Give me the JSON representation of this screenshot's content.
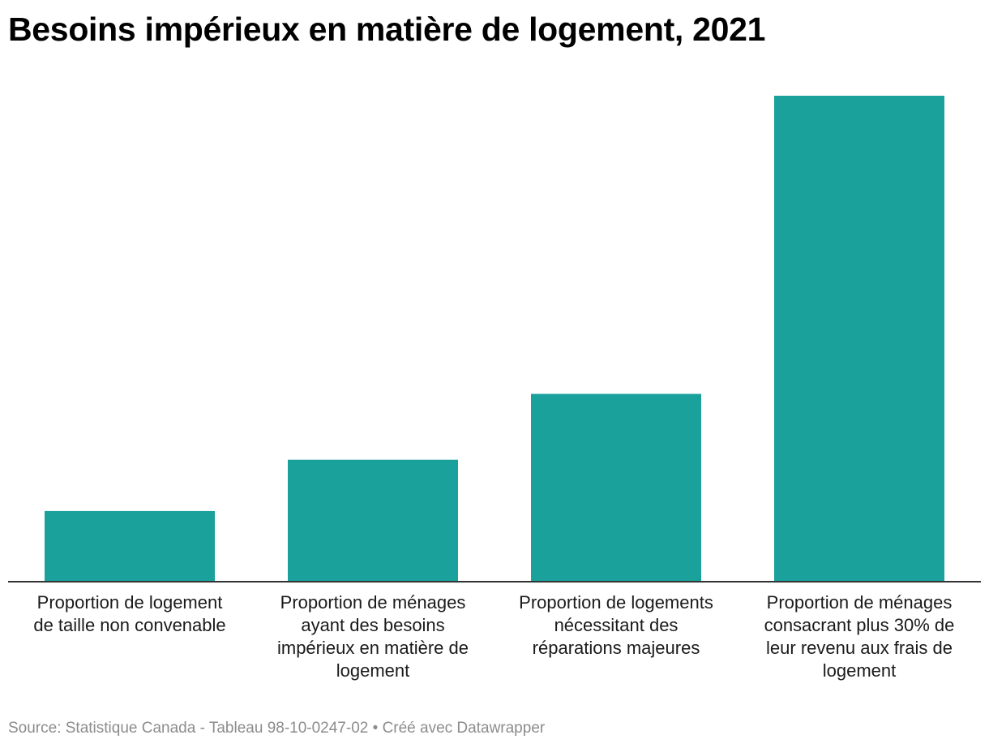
{
  "title": "Besoins impérieux en matière de logement, 2021",
  "footer": {
    "source": "Source: Statistique Canada - Tableau 98-10-0247-02",
    "separator": " • ",
    "credit": "Créé avec Datawrapper"
  },
  "colors": {
    "bar": "#1aa19c",
    "baseline": "#333333",
    "text": "#1a1a1a",
    "footer": "#8c8c8c"
  },
  "chart_data": {
    "type": "bar",
    "categories": [
      [
        "Proportion de logement",
        "de taille non convenable"
      ],
      [
        "Proportion de ménages",
        "ayant des besoins",
        "impérieux en matière de",
        "logement"
      ],
      [
        "Proportion de logements",
        "nécessitant des",
        "réparations majeures"
      ],
      [
        "Proportion de ménages",
        "consacrant plus 30% de",
        "leur revenu aux frais de",
        "logement"
      ]
    ],
    "values": [
      7.3,
      12.6,
      19.4,
      50.2
    ],
    "ylim": [
      0,
      50.2
    ],
    "grid": false,
    "xlabel": "",
    "ylabel": ""
  }
}
